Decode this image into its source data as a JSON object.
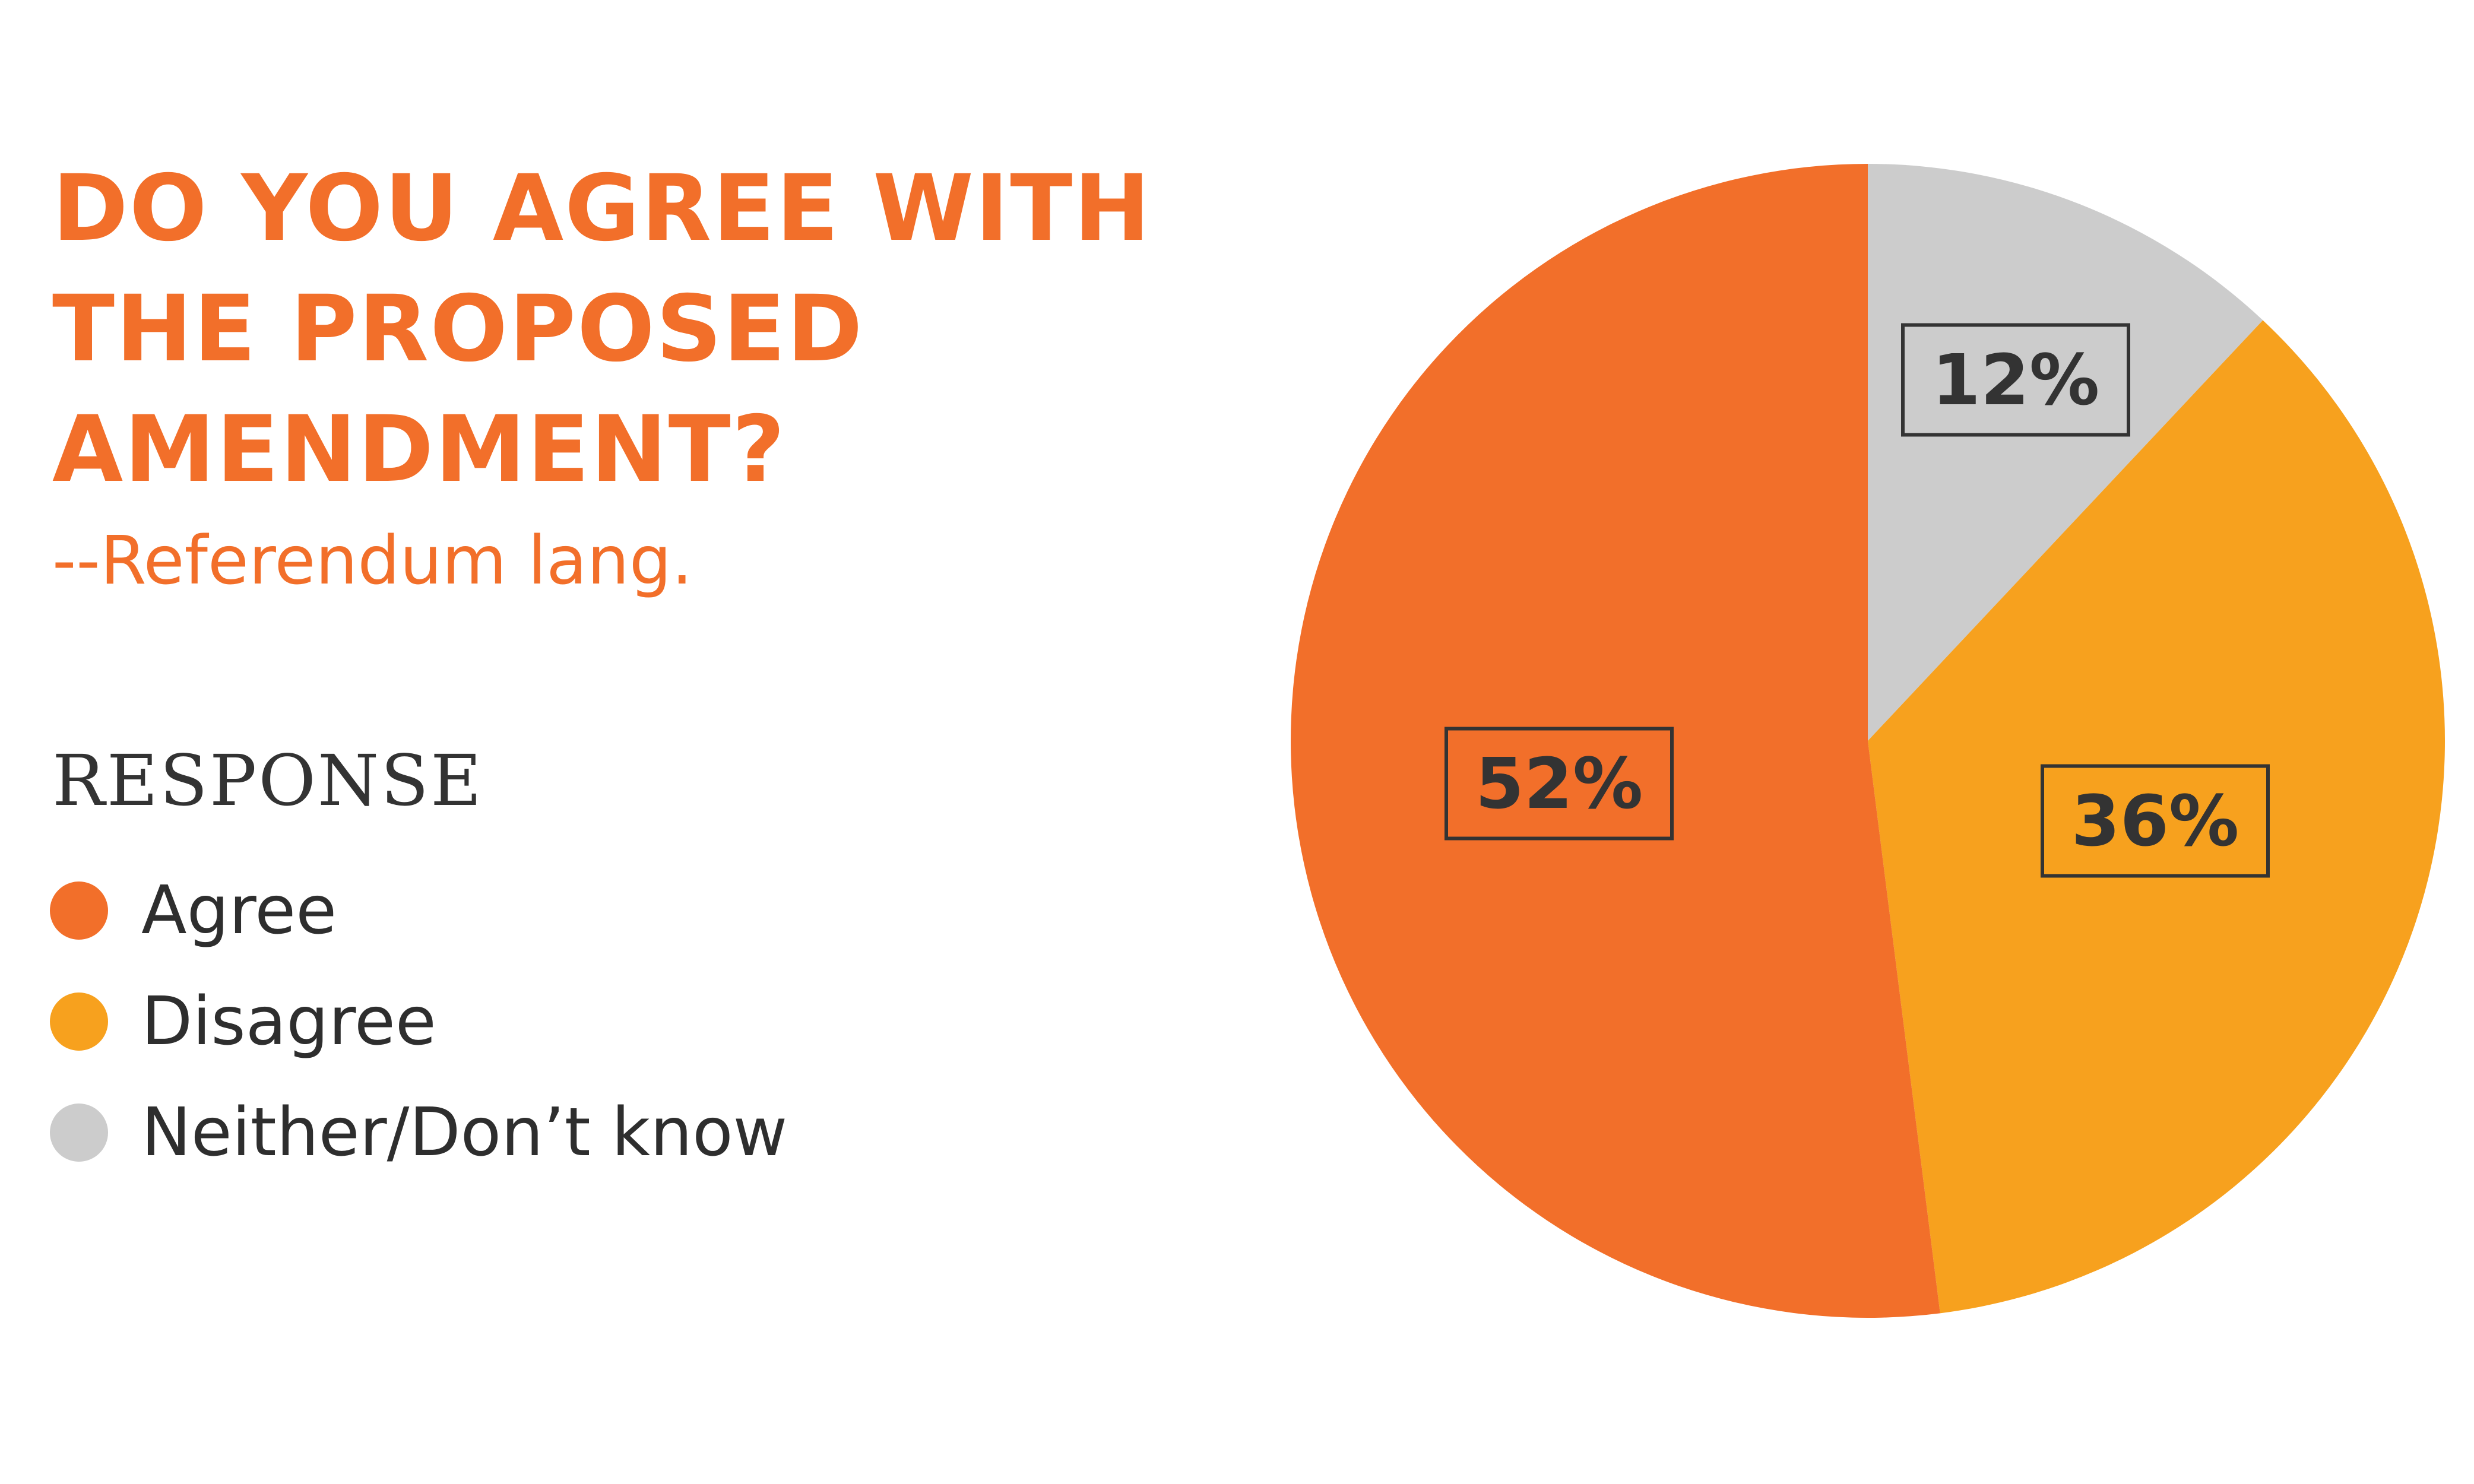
{
  "chart_data": {
    "type": "pie",
    "title": "DO YOU AGREE WITH THE PROPOSED AMENDMENT?",
    "title_lines": [
      "DO YOU AGREE WITH",
      "THE PROPOSED",
      "AMENDMENT?"
    ],
    "subtitle": "--Referendum lang.",
    "legend": {
      "title": "RESPONSE",
      "placement": "left"
    },
    "slices": [
      {
        "name": "Neither/Don’t know",
        "value": 12,
        "label": "12%",
        "color": "#cccccc"
      },
      {
        "name": "Disagree",
        "value": 36,
        "label": "36%",
        "color": "#f7a11e"
      },
      {
        "name": "Agree",
        "value": 52,
        "label": "52%",
        "color": "#f26f2a"
      }
    ],
    "legend_order": [
      "Agree",
      "Disagree",
      "Neither/Don’t know"
    ],
    "start_angle": "12 o'clock",
    "direction": "clockwise"
  }
}
